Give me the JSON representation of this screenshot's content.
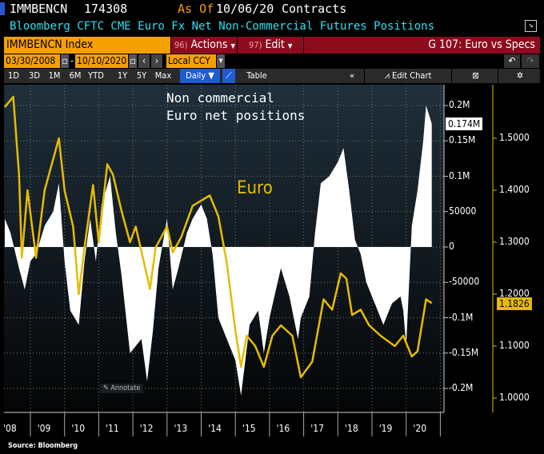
{
  "header": {
    "ticker": "IMMBENCN",
    "value": "174308",
    "as_of_label": "As Of",
    "as_of_date": "10/06/20",
    "units": "Contracts",
    "title": "Bloomberg CFTC CME Euro Fx Net Non-Commercial Futures Positions"
  },
  "toolbar": {
    "security": "IMMBENCN Index",
    "actions": "Actions",
    "actions_num": "96)",
    "edit": "Edit",
    "edit_num": "97)",
    "chart_name": "G 107: Euro vs Specs",
    "start_date": "03/30/2008",
    "end_date": "10/10/2020",
    "currency": "Local CCY",
    "dash": "-",
    "ranges": [
      "1D",
      "3D",
      "1M",
      "6M",
      "YTD",
      "1Y",
      "5Y",
      "Max"
    ],
    "frequency": "Daily ▼",
    "table": "Table",
    "edit_chart": "Edit Chart",
    "collapse": "«"
  },
  "colors": {
    "euro": "#e6bb00",
    "positions": "#ffffff",
    "accent_orange": "#f5a000",
    "accent_red": "#8c0c1e"
  },
  "chart_data": {
    "type": "line+area",
    "annotations": [
      "Non commercial",
      "Euro net positions",
      "Euro"
    ],
    "annotate_button": "Annotate",
    "x_ticks": [
      "'08",
      "'09",
      "'10",
      "'11",
      "'12",
      "'13",
      "'14",
      "'15",
      "'16",
      "'17",
      "'18",
      "'19",
      "'20"
    ],
    "left_axis": {
      "ticks": [
        "0.2M",
        "0.15M",
        "0.1M",
        "50000",
        "0",
        "-50000",
        "-0.1M",
        "-0.15M",
        "-0.2M"
      ],
      "values": [
        200000,
        150000,
        100000,
        50000,
        0,
        -50000,
        -100000,
        -150000,
        -200000
      ],
      "last_label": "0.174M",
      "last": 174308
    },
    "right_axis": {
      "ticks": [
        "1.5000",
        "1.4000",
        "1.3000",
        "1.2000",
        "1.1000",
        "1.0000"
      ],
      "values": [
        1.5,
        1.4,
        1.3,
        1.2,
        1.1,
        1.0
      ],
      "last_label": "1.1826",
      "last": 1.1826
    },
    "series": [
      {
        "name": "Non commercial Euro net positions",
        "type": "area",
        "points": [
          [
            "2008-04",
            40000
          ],
          [
            "2008-06",
            20000
          ],
          [
            "2008-09",
            -30000
          ],
          [
            "2008-11",
            -60000
          ],
          [
            "2009-01",
            -20000
          ],
          [
            "2009-03",
            -10000
          ],
          [
            "2009-06",
            30000
          ],
          [
            "2009-09",
            50000
          ],
          [
            "2009-11",
            90000
          ],
          [
            "2010-01",
            -20000
          ],
          [
            "2010-03",
            -90000
          ],
          [
            "2010-06",
            -110000
          ],
          [
            "2010-08",
            -20000
          ],
          [
            "2010-10",
            40000
          ],
          [
            "2010-12",
            -20000
          ],
          [
            "2011-02",
            60000
          ],
          [
            "2011-05",
            100000
          ],
          [
            "2011-07",
            20000
          ],
          [
            "2011-09",
            -40000
          ],
          [
            "2011-12",
            -150000
          ],
          [
            "2012-04",
            -130000
          ],
          [
            "2012-06",
            -190000
          ],
          [
            "2012-08",
            -120000
          ],
          [
            "2012-10",
            -30000
          ],
          [
            "2013-01",
            40000
          ],
          [
            "2013-03",
            -60000
          ],
          [
            "2013-05",
            -30000
          ],
          [
            "2013-08",
            20000
          ],
          [
            "2013-10",
            40000
          ],
          [
            "2014-01",
            60000
          ],
          [
            "2014-03",
            40000
          ],
          [
            "2014-05",
            -10000
          ],
          [
            "2014-07",
            -100000
          ],
          [
            "2014-10",
            -130000
          ],
          [
            "2015-01",
            -160000
          ],
          [
            "2015-03",
            -210000
          ],
          [
            "2015-06",
            -110000
          ],
          [
            "2015-09",
            -90000
          ],
          [
            "2015-11",
            -150000
          ],
          [
            "2016-01",
            -100000
          ],
          [
            "2016-05",
            -30000
          ],
          [
            "2016-08",
            -70000
          ],
          [
            "2016-11",
            -130000
          ],
          [
            "2016-12",
            -100000
          ],
          [
            "2017-03",
            -70000
          ],
          [
            "2017-05",
            20000
          ],
          [
            "2017-07",
            90000
          ],
          [
            "2017-10",
            100000
          ],
          [
            "2018-01",
            120000
          ],
          [
            "2018-03",
            140000
          ],
          [
            "2018-05",
            80000
          ],
          [
            "2018-07",
            10000
          ],
          [
            "2018-09",
            -10000
          ],
          [
            "2018-11",
            -50000
          ],
          [
            "2019-03",
            -90000
          ],
          [
            "2019-05",
            -110000
          ],
          [
            "2019-08",
            -80000
          ],
          [
            "2019-11",
            -70000
          ],
          [
            "2019-12",
            -90000
          ],
          [
            "2020-01",
            -140000
          ],
          [
            "2020-03",
            30000
          ],
          [
            "2020-05",
            80000
          ],
          [
            "2020-07",
            150000
          ],
          [
            "2020-08",
            200000
          ],
          [
            "2020-10",
            174308
          ]
        ]
      },
      {
        "name": "Euro",
        "type": "line",
        "points": [
          [
            "2008-04",
            1.56
          ],
          [
            "2008-07",
            1.58
          ],
          [
            "2008-09",
            1.43
          ],
          [
            "2008-10",
            1.27
          ],
          [
            "2008-12",
            1.4
          ],
          [
            "2009-03",
            1.27
          ],
          [
            "2009-06",
            1.4
          ],
          [
            "2009-09",
            1.46
          ],
          [
            "2009-11",
            1.5
          ],
          [
            "2010-01",
            1.4
          ],
          [
            "2010-04",
            1.33
          ],
          [
            "2010-06",
            1.2
          ],
          [
            "2010-08",
            1.29
          ],
          [
            "2010-11",
            1.41
          ],
          [
            "2011-01",
            1.3
          ],
          [
            "2011-04",
            1.45
          ],
          [
            "2011-06",
            1.43
          ],
          [
            "2011-09",
            1.36
          ],
          [
            "2011-12",
            1.3
          ],
          [
            "2012-02",
            1.33
          ],
          [
            "2012-07",
            1.21
          ],
          [
            "2012-09",
            1.29
          ],
          [
            "2013-01",
            1.33
          ],
          [
            "2013-03",
            1.28
          ],
          [
            "2013-06",
            1.31
          ],
          [
            "2013-10",
            1.37
          ],
          [
            "2014-04",
            1.39
          ],
          [
            "2014-07",
            1.35
          ],
          [
            "2014-10",
            1.26
          ],
          [
            "2015-01",
            1.13
          ],
          [
            "2015-03",
            1.06
          ],
          [
            "2015-05",
            1.12
          ],
          [
            "2015-08",
            1.1
          ],
          [
            "2015-11",
            1.06
          ],
          [
            "2016-02",
            1.12
          ],
          [
            "2016-05",
            1.14
          ],
          [
            "2016-09",
            1.12
          ],
          [
            "2016-12",
            1.04
          ],
          [
            "2017-04",
            1.07
          ],
          [
            "2017-08",
            1.19
          ],
          [
            "2017-11",
            1.17
          ],
          [
            "2018-02",
            1.24
          ],
          [
            "2018-04",
            1.23
          ],
          [
            "2018-06",
            1.16
          ],
          [
            "2018-09",
            1.17
          ],
          [
            "2018-12",
            1.14
          ],
          [
            "2019-04",
            1.12
          ],
          [
            "2019-09",
            1.1
          ],
          [
            "2019-12",
            1.12
          ],
          [
            "2020-03",
            1.08
          ],
          [
            "2020-05",
            1.09
          ],
          [
            "2020-08",
            1.19
          ],
          [
            "2020-10",
            1.1826
          ]
        ]
      }
    ]
  },
  "footer": {
    "source": "Source: Bloomberg"
  }
}
